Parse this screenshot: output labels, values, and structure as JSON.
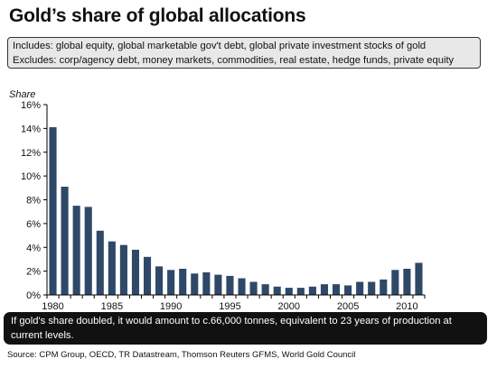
{
  "title": "Gold’s share of global allocations",
  "scope": {
    "includes": "Includes: global equity, global marketable gov't debt, global private investment stocks of gold",
    "excludes": "Excludes: corp/agency debt, money markets, commodities, real estate, hedge funds, private equity"
  },
  "callout": "If gold's share doubled, it would amount to c.66,000 tonnes, equivalent to 23 years of production at current levels.",
  "source": "Source: CPM Group, OECD, TR Datastream, Thomson Reuters GFMS, World Gold Council",
  "colors": {
    "bar": "#2e4868",
    "axis": "#000000"
  },
  "chart_data": {
    "type": "bar",
    "ylabel": "Share",
    "ylim": [
      0,
      16
    ],
    "yticks": [
      0,
      2,
      4,
      6,
      8,
      10,
      12,
      14,
      16
    ],
    "ytick_labels": [
      "0%",
      "2%",
      "4%",
      "6%",
      "8%",
      "10%",
      "12%",
      "14%",
      "16%"
    ],
    "xtick_labels": [
      "1980",
      "1985",
      "1990",
      "1995",
      "2000",
      "2005",
      "2010"
    ],
    "categories": [
      "1980",
      "1981",
      "1982",
      "1983",
      "1984",
      "1985",
      "1986",
      "1987",
      "1988",
      "1989",
      "1990",
      "1991",
      "1992",
      "1993",
      "1994",
      "1995",
      "1996",
      "1997",
      "1998",
      "1999",
      "2000",
      "2001",
      "2002",
      "2003",
      "2004",
      "2005",
      "2006",
      "2007",
      "2008",
      "2009",
      "2010",
      "2011"
    ],
    "values": [
      14.1,
      9.1,
      7.5,
      7.4,
      5.4,
      4.5,
      4.2,
      3.8,
      3.2,
      2.4,
      2.1,
      2.2,
      1.8,
      1.9,
      1.7,
      1.6,
      1.4,
      1.1,
      0.9,
      0.7,
      0.6,
      0.6,
      0.7,
      0.9,
      0.9,
      0.8,
      1.1,
      1.1,
      1.3,
      2.1,
      2.2,
      2.7
    ],
    "grid": false,
    "legend": "none"
  }
}
